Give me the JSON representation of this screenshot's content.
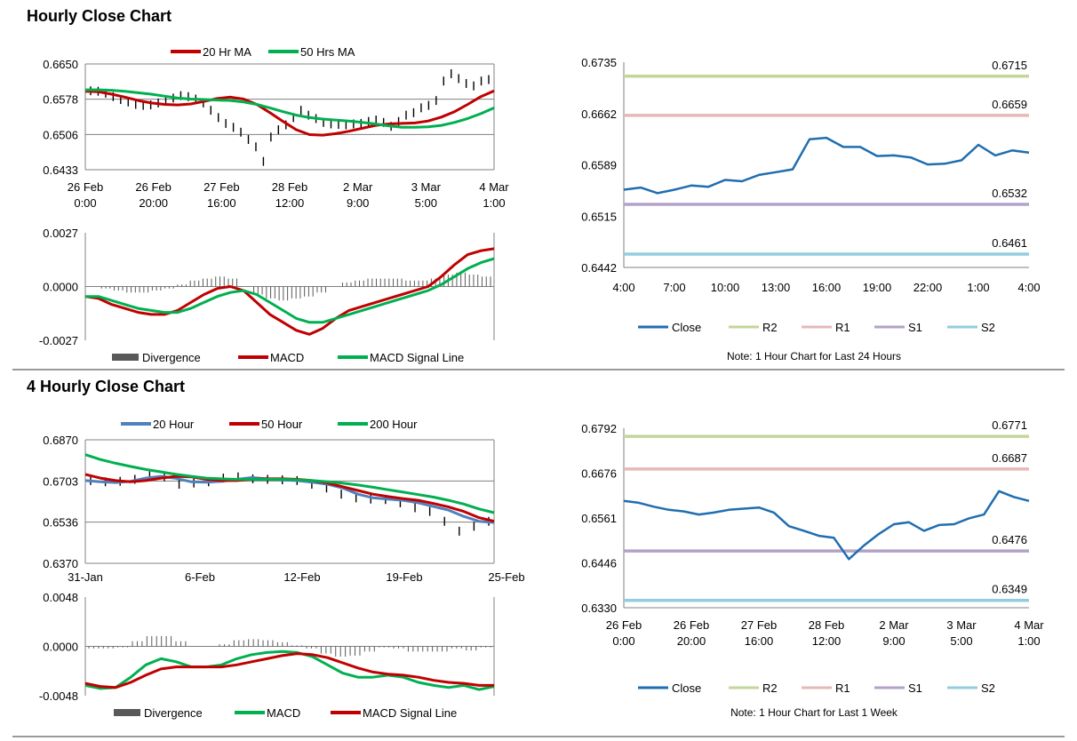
{
  "sections": {
    "hourly_title": "Hourly Close Chart",
    "four_hourly_title": "4 Hourly Close Chart"
  },
  "colors": {
    "ma_red": "#c00000",
    "ma_green": "#00b050",
    "ma_blue": "#4f81bd",
    "close": "#1f6eb0",
    "R2": "#c3d69b",
    "R1": "#e6b9b8",
    "S1": "#b3a2c7",
    "S2": "#93cddd",
    "divergence": "#595959",
    "grid": "#808080"
  },
  "chart_data": [
    {
      "id": "hourly_price",
      "type": "line",
      "legend": [
        "20 Hr MA",
        "50 Hrs MA"
      ],
      "yticks": [
        "0.6650",
        "0.6578",
        "0.6506",
        "0.6433"
      ],
      "ylim": [
        0.6433,
        0.665
      ],
      "xticks": [
        [
          "26 Feb",
          "0:00"
        ],
        [
          "26 Feb",
          "20:00"
        ],
        [
          "27 Feb",
          "16:00"
        ],
        [
          "28 Feb",
          "12:00"
        ],
        [
          "2 Mar",
          "9:00"
        ],
        [
          "3 Mar",
          "5:00"
        ],
        [
          "4 Mar",
          "1:00"
        ]
      ],
      "series": [
        {
          "name": "20 Hr MA",
          "color": "ma_red",
          "values": [
            0.6594,
            0.6593,
            0.6588,
            0.6582,
            0.6575,
            0.657,
            0.6567,
            0.6566,
            0.6568,
            0.6573,
            0.6579,
            0.6582,
            0.6578,
            0.6567,
            0.655,
            0.6532,
            0.6515,
            0.6505,
            0.6504,
            0.6507,
            0.6512,
            0.6518,
            0.6524,
            0.6527,
            0.6528,
            0.6529,
            0.6533,
            0.6541,
            0.6552,
            0.6567,
            0.6583,
            0.6595
          ]
        },
        {
          "name": "50 Hrs MA",
          "color": "ma_green",
          "values": [
            0.6597,
            0.6597,
            0.6596,
            0.6594,
            0.6591,
            0.6588,
            0.6584,
            0.658,
            0.6578,
            0.6577,
            0.6576,
            0.6575,
            0.6572,
            0.6567,
            0.656,
            0.6552,
            0.6545,
            0.654,
            0.6537,
            0.6535,
            0.6533,
            0.653,
            0.6527,
            0.6523,
            0.652,
            0.652,
            0.6521,
            0.6524,
            0.653,
            0.6538,
            0.6548,
            0.656
          ]
        }
      ],
      "bars": [
        0.6595,
        0.6594,
        0.659,
        0.6583,
        0.6577,
        0.6572,
        0.6567,
        0.6565,
        0.6566,
        0.657,
        0.6575,
        0.658,
        0.6585,
        0.6583,
        0.6578,
        0.657,
        0.6555,
        0.654,
        0.6528,
        0.652,
        0.651,
        0.6495,
        0.648,
        0.645,
        0.65,
        0.6515,
        0.6525,
        0.654,
        0.6555,
        0.6545,
        0.6538,
        0.653,
        0.6527,
        0.6526,
        0.6525,
        0.6527,
        0.6528,
        0.6532,
        0.6535,
        0.653,
        0.6522,
        0.6532,
        0.6545,
        0.655,
        0.656,
        0.6565,
        0.6575,
        0.6615,
        0.663,
        0.662,
        0.661,
        0.6605,
        0.6615,
        0.6618
      ]
    },
    {
      "id": "hourly_macd",
      "type": "line",
      "legend": [
        "Divergence",
        "MACD",
        "MACD Signal Line"
      ],
      "yticks": [
        "0.0027",
        "0.0000",
        "-0.0027"
      ],
      "ylim": [
        -0.0027,
        0.0027
      ],
      "series": [
        {
          "name": "MACD",
          "color": "ma_red",
          "values": [
            -0.0005,
            -0.0006,
            -0.0009,
            -0.0011,
            -0.0013,
            -0.0014,
            -0.0014,
            -0.0012,
            -0.0008,
            -0.0004,
            -0.0001,
            0.0,
            -0.0002,
            -0.0008,
            -0.0014,
            -0.0018,
            -0.0022,
            -0.0024,
            -0.0021,
            -0.0016,
            -0.0012,
            -0.001,
            -0.0008,
            -0.0006,
            -0.0004,
            -0.0002,
            -0.0,
            0.0005,
            0.0011,
            0.0016,
            0.0018,
            0.0019
          ]
        },
        {
          "name": "MACD Signal Line",
          "color": "ma_green",
          "values": [
            -0.0005,
            -0.0005,
            -0.0007,
            -0.0009,
            -0.0011,
            -0.0012,
            -0.0013,
            -0.0013,
            -0.0011,
            -0.0008,
            -0.0005,
            -0.0003,
            -0.0002,
            -0.0004,
            -0.0008,
            -0.0012,
            -0.0016,
            -0.0018,
            -0.0018,
            -0.0016,
            -0.0014,
            -0.0012,
            -0.001,
            -0.0008,
            -0.0006,
            -0.0004,
            -0.0002,
            0.0001,
            0.0005,
            0.0009,
            0.0012,
            0.0014
          ]
        }
      ],
      "divergence": [
        0.0,
        -0.0001,
        -0.0002,
        -0.0003,
        -0.0003,
        -0.0002,
        -0.0001,
        0.0001,
        0.0003,
        0.0004,
        0.0005,
        0.0004,
        0.0,
        -0.0004,
        -0.0006,
        -0.0007,
        -0.0006,
        -0.0005,
        -0.0003,
        0.0,
        0.0002,
        0.0003,
        0.0004,
        0.0004,
        0.0004,
        0.0003,
        0.0003,
        0.0004,
        0.0006,
        0.0007,
        0.0006,
        0.0005
      ]
    },
    {
      "id": "hourly_levels",
      "type": "line",
      "legend": [
        "Close",
        "R2",
        "R1",
        "S1",
        "S2"
      ],
      "yticks": [
        "0.6735",
        "0.6662",
        "0.6589",
        "0.6515",
        "0.6442"
      ],
      "ylim": [
        0.6442,
        0.6735
      ],
      "xticks": [
        "4:00",
        "7:00",
        "10:00",
        "13:00",
        "16:00",
        "19:00",
        "22:00",
        "1:00",
        "4:00"
      ],
      "levels": [
        {
          "name": "R2",
          "value": 0.6715,
          "label": "0.6715"
        },
        {
          "name": "R1",
          "value": 0.6659,
          "label": "0.6659"
        },
        {
          "name": "S1",
          "value": 0.6532,
          "label": "0.6532"
        },
        {
          "name": "S2",
          "value": 0.6461,
          "label": "0.6461"
        }
      ],
      "series": [
        {
          "name": "Close",
          "color": "close",
          "values": [
            0.6553,
            0.6556,
            0.6548,
            0.6553,
            0.6559,
            0.6557,
            0.6567,
            0.6565,
            0.6574,
            0.6578,
            0.6582,
            0.6625,
            0.6627,
            0.6614,
            0.6614,
            0.6601,
            0.6602,
            0.6599,
            0.6589,
            0.659,
            0.6595,
            0.6617,
            0.6602,
            0.6609,
            0.6606
          ]
        }
      ],
      "note": "Note: 1 Hour Chart for Last 24 Hours"
    },
    {
      "id": "four_hourly_price",
      "type": "line",
      "legend": [
        "20 Hour",
        "50 Hour",
        "200 Hour"
      ],
      "yticks": [
        "0.6870",
        "0.6703",
        "0.6536",
        "0.6370"
      ],
      "ylim": [
        0.637,
        0.687
      ],
      "xticks": [
        "31-Jan",
        "6-Feb",
        "12-Feb",
        "19-Feb",
        "25-Feb"
      ],
      "series": [
        {
          "name": "20 Hour",
          "color": "ma_blue",
          "values": [
            0.6705,
            0.67,
            0.6697,
            0.6702,
            0.6715,
            0.6722,
            0.6714,
            0.67,
            0.6698,
            0.6702,
            0.671,
            0.6717,
            0.6712,
            0.6707,
            0.6705,
            0.6698,
            0.669,
            0.6675,
            0.665,
            0.6635,
            0.663,
            0.6625,
            0.6615,
            0.66,
            0.6585,
            0.656,
            0.654,
            0.6535
          ]
        },
        {
          "name": "50 Hour",
          "color": "ma_red",
          "values": [
            0.673,
            0.6715,
            0.6705,
            0.67,
            0.6705,
            0.6715,
            0.6722,
            0.672,
            0.671,
            0.6705,
            0.6705,
            0.671,
            0.6712,
            0.6712,
            0.671,
            0.6705,
            0.6695,
            0.668,
            0.6665,
            0.665,
            0.664,
            0.6632,
            0.6625,
            0.6612,
            0.6598,
            0.658,
            0.6555,
            0.654
          ]
        },
        {
          "name": "200 Hour",
          "color": "ma_green",
          "values": [
            0.681,
            0.679,
            0.6775,
            0.6762,
            0.675,
            0.674,
            0.673,
            0.6722,
            0.6715,
            0.6712,
            0.671,
            0.671,
            0.671,
            0.671,
            0.6708,
            0.6705,
            0.67,
            0.6695,
            0.6687,
            0.6678,
            0.6668,
            0.6658,
            0.6648,
            0.6638,
            0.6625,
            0.661,
            0.659,
            0.6575
          ]
        }
      ],
      "bars": [
        0.6705,
        0.67,
        0.6702,
        0.671,
        0.6725,
        0.672,
        0.669,
        0.6695,
        0.67,
        0.6715,
        0.672,
        0.6712,
        0.671,
        0.6708,
        0.6705,
        0.669,
        0.6675,
        0.665,
        0.6635,
        0.663,
        0.6628,
        0.6615,
        0.6595,
        0.658,
        0.654,
        0.65,
        0.652,
        0.654
      ]
    },
    {
      "id": "four_hourly_macd",
      "type": "line",
      "legend": [
        "Divergence",
        "MACD",
        "MACD Signal Line"
      ],
      "yticks": [
        "0.0048",
        "0.0000",
        "-0.0048"
      ],
      "ylim": [
        -0.0048,
        0.0048
      ],
      "series": [
        {
          "name": "MACD",
          "color": "ma_green",
          "values": [
            -0.0038,
            -0.0041,
            -0.004,
            -0.003,
            -0.0018,
            -0.0012,
            -0.0015,
            -0.002,
            -0.002,
            -0.0018,
            -0.0012,
            -0.0008,
            -0.0006,
            -0.0005,
            -0.0006,
            -0.001,
            -0.0018,
            -0.0026,
            -0.003,
            -0.003,
            -0.0028,
            -0.003,
            -0.0035,
            -0.0038,
            -0.004,
            -0.0038,
            -0.0042,
            -0.0039
          ]
        },
        {
          "name": "MACD Signal Line",
          "color": "ma_red",
          "values": [
            -0.0036,
            -0.0039,
            -0.004,
            -0.0035,
            -0.0028,
            -0.0022,
            -0.002,
            -0.002,
            -0.002,
            -0.002,
            -0.0018,
            -0.0015,
            -0.0012,
            -0.0009,
            -0.0007,
            -0.0008,
            -0.0011,
            -0.0016,
            -0.0021,
            -0.0025,
            -0.0027,
            -0.0028,
            -0.003,
            -0.0033,
            -0.0035,
            -0.0036,
            -0.0038,
            -0.0038
          ]
        }
      ],
      "divergence": [
        -0.0002,
        -0.0002,
        -0.0001,
        0.0005,
        0.001,
        0.001,
        0.0005,
        0.0,
        0.0,
        0.0002,
        0.0006,
        0.0007,
        0.0006,
        0.0004,
        0.0001,
        -0.0002,
        -0.0007,
        -0.001,
        -0.0009,
        -0.0005,
        -0.0001,
        -0.0002,
        -0.0005,
        -0.0005,
        -0.0005,
        -0.0002,
        -0.0004,
        -0.0001
      ]
    },
    {
      "id": "four_hourly_levels",
      "type": "line",
      "legend": [
        "Close",
        "R2",
        "R1",
        "S1",
        "S2"
      ],
      "yticks": [
        "0.6792",
        "0.6676",
        "0.6561",
        "0.6446",
        "0.6330"
      ],
      "ylim": [
        0.633,
        0.6792
      ],
      "xticks": [
        [
          "26 Feb",
          "0:00"
        ],
        [
          "26 Feb",
          "20:00"
        ],
        [
          "27 Feb",
          "16:00"
        ],
        [
          "28 Feb",
          "12:00"
        ],
        [
          "2 Mar",
          "9:00"
        ],
        [
          "3 Mar",
          "5:00"
        ],
        [
          "4 Mar",
          "1:00"
        ]
      ],
      "levels": [
        {
          "name": "R2",
          "value": 0.6771,
          "label": "0.6771"
        },
        {
          "name": "R1",
          "value": 0.6687,
          "label": "0.6687"
        },
        {
          "name": "S1",
          "value": 0.6476,
          "label": "0.6476"
        },
        {
          "name": "S2",
          "value": 0.6349,
          "label": "0.6349"
        }
      ],
      "series": [
        {
          "name": "Close",
          "color": "close",
          "values": [
            0.6605,
            0.66,
            0.659,
            0.6582,
            0.6578,
            0.657,
            0.6575,
            0.6582,
            0.6585,
            0.6588,
            0.6575,
            0.654,
            0.6528,
            0.6515,
            0.651,
            0.6455,
            0.649,
            0.652,
            0.6545,
            0.655,
            0.6528,
            0.6543,
            0.6545,
            0.656,
            0.657,
            0.663,
            0.6615,
            0.6605
          ]
        }
      ],
      "note": "Note: 1 Hour Chart for Last 1 Week"
    }
  ]
}
